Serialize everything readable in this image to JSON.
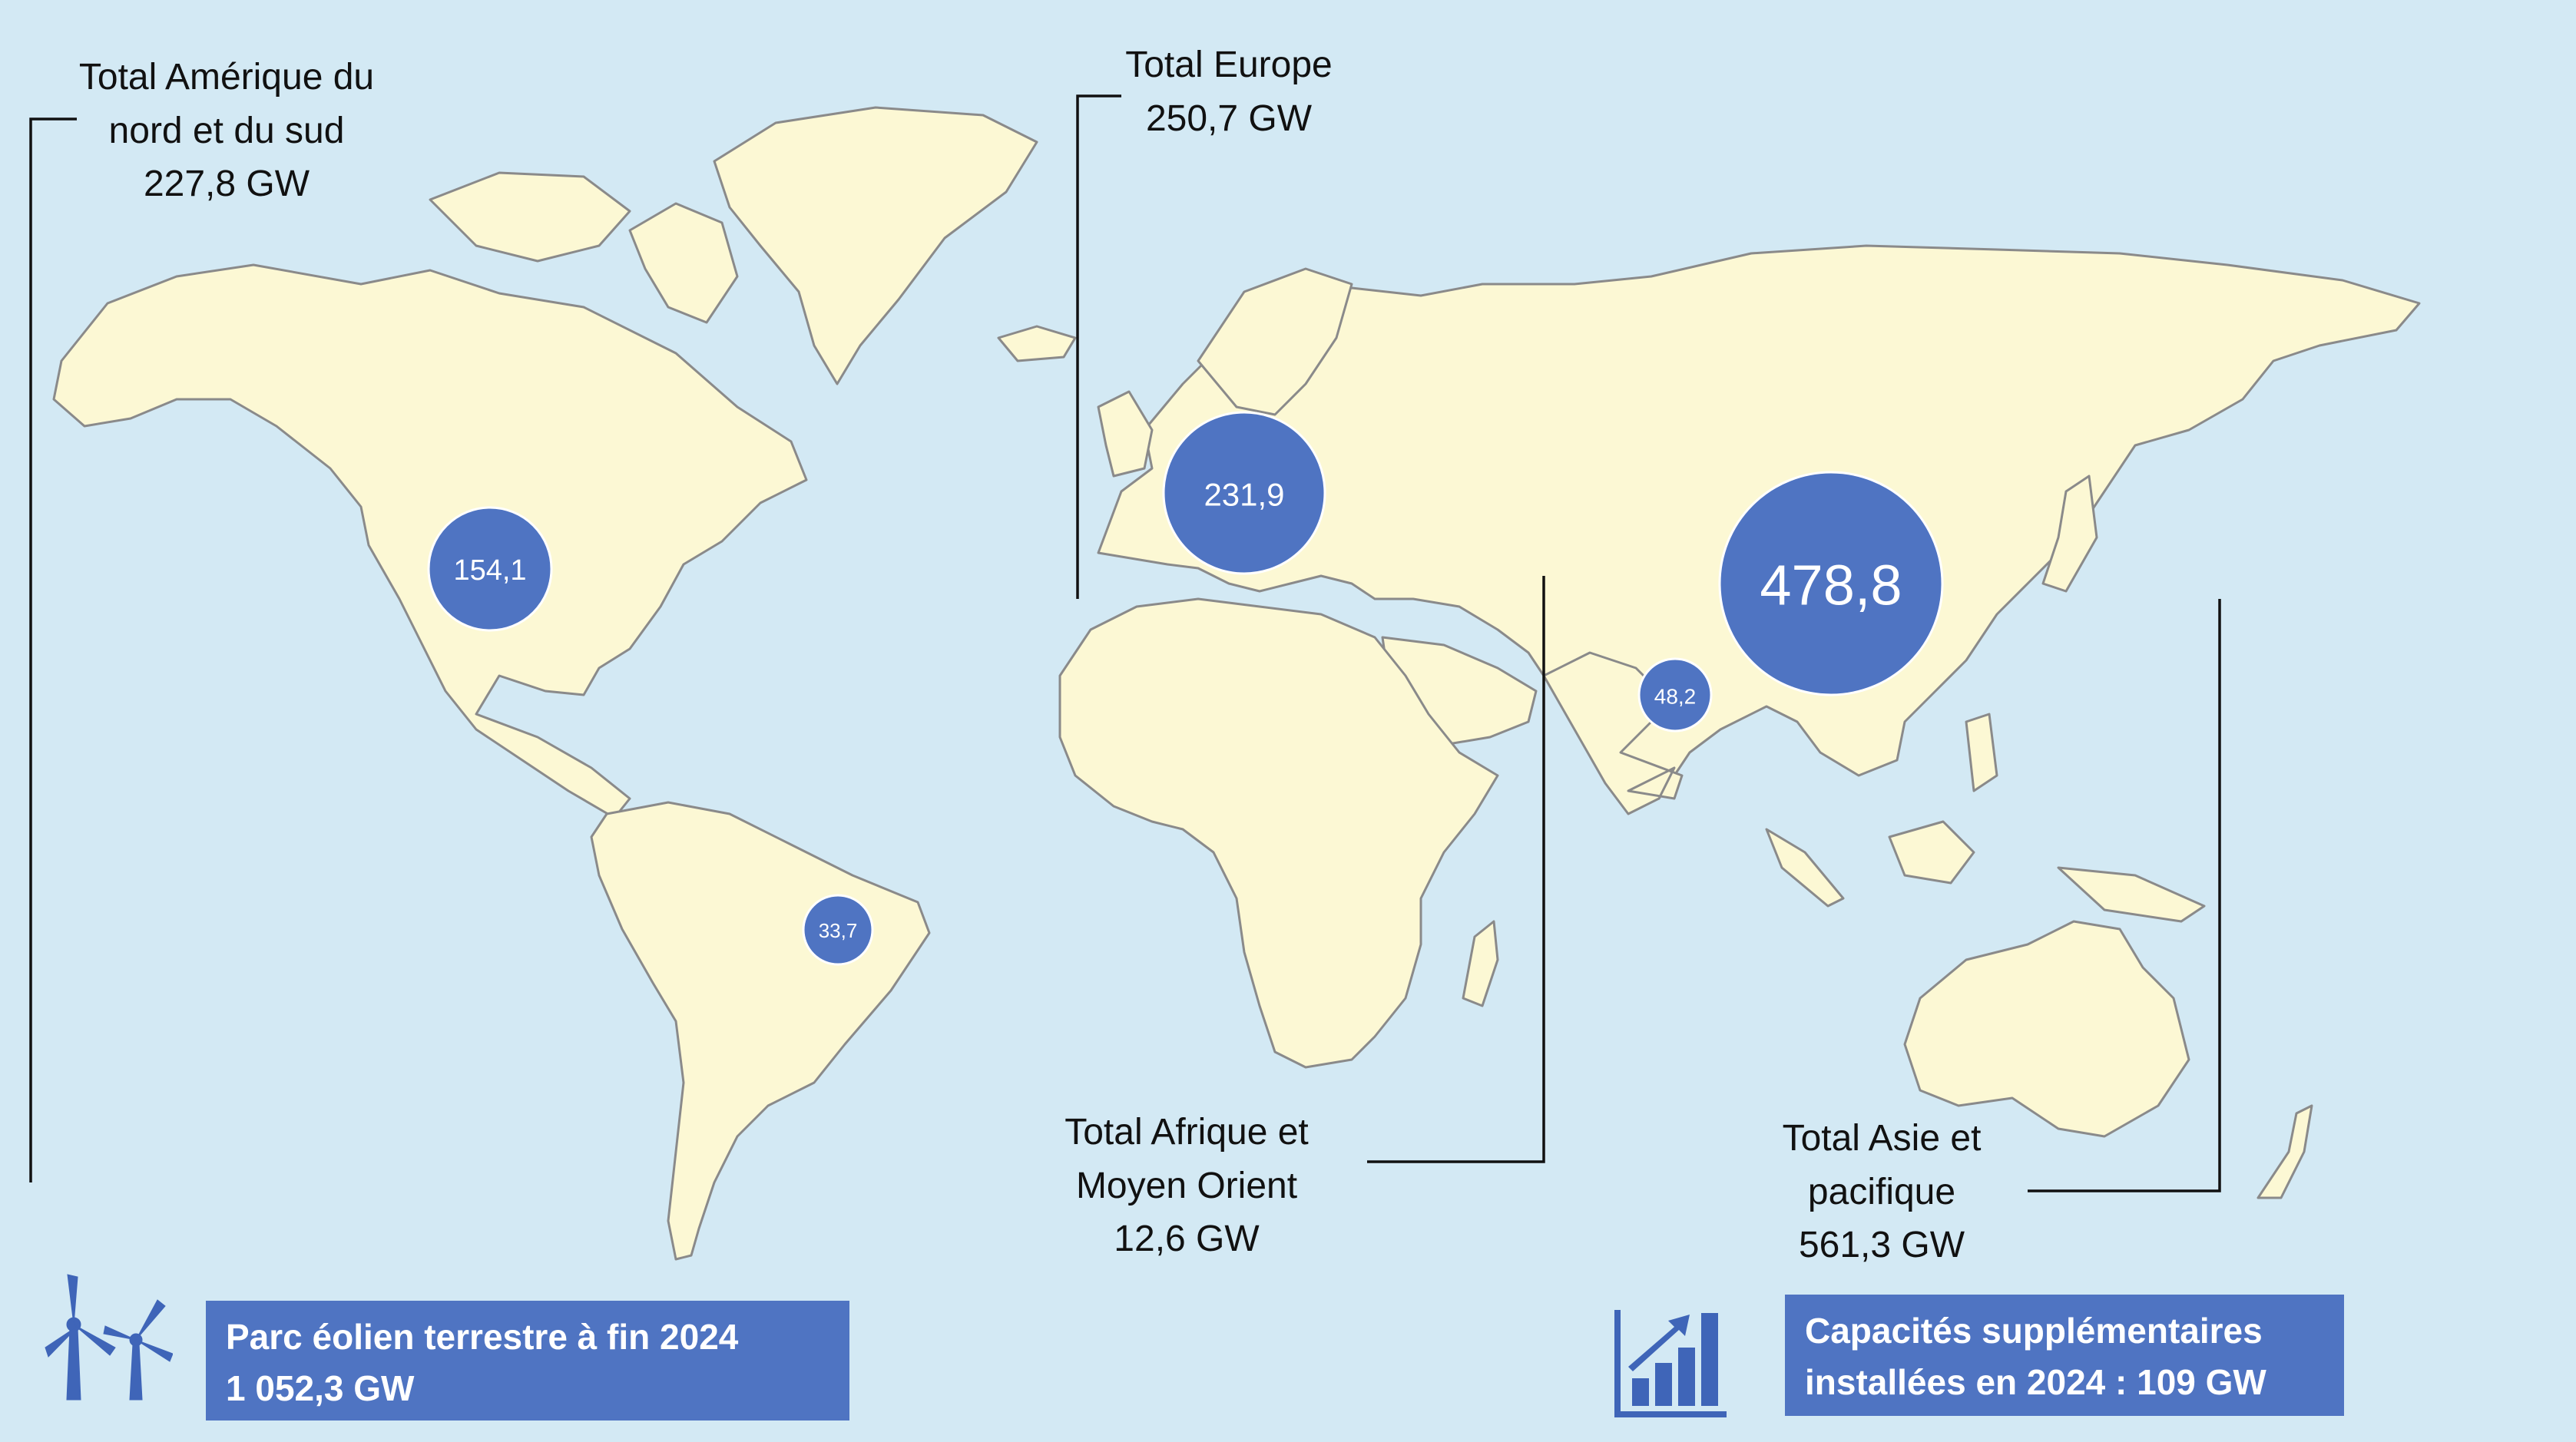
{
  "regions": {
    "americas": {
      "line1": "Total Amérique du",
      "line2": "nord et du sud",
      "line3": "227,8 GW"
    },
    "europe": {
      "line1": "Total Europe",
      "line2": "250,7 GW"
    },
    "africa_me": {
      "line1": "Total Afrique et",
      "line2": "Moyen Orient",
      "line3": "12,6 GW"
    },
    "asia_pacific": {
      "line1": "Total Asie et",
      "line2": "pacifique",
      "line3": "561,3 GW"
    }
  },
  "bubbles": [
    {
      "name": "usa",
      "label": "154,1",
      "value": 154.1
    },
    {
      "name": "brazil",
      "label": "33,7",
      "value": 33.7
    },
    {
      "name": "europe",
      "label": "231,9",
      "value": 231.9
    },
    {
      "name": "india",
      "label": "48,2",
      "value": 48.2
    },
    {
      "name": "china",
      "label": "478,8",
      "value": 478.8
    }
  ],
  "footer": {
    "onshore_line1": "Parc éolien terrestre à fin 2024",
    "onshore_line2": "1 052,3 GW",
    "added_line1": "Capacités supplémentaires",
    "added_line2": "installées en 2024 : 109 GW"
  },
  "icons": {
    "left": "wind-turbines-icon",
    "right": "growth-bar-chart-icon"
  },
  "colors": {
    "ocean": "#d3e9f4",
    "land": "#fcf8d4",
    "border": "#8a8a8a",
    "bubble": "#4f74c2",
    "box": "#4f74c2"
  }
}
